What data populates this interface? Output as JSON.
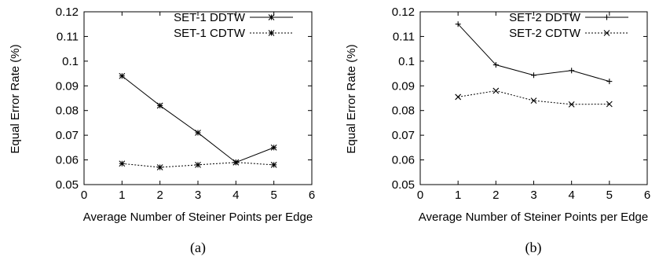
{
  "chart_data": [
    {
      "type": "line",
      "caption": "(a)",
      "xlabel": "Average Number of Steiner Points per Edge",
      "ylabel": "Equal Error Rate (%)",
      "xlim": [
        0,
        6
      ],
      "ylim": [
        0.05,
        0.12
      ],
      "xticks": [
        0,
        1,
        2,
        3,
        4,
        5,
        6
      ],
      "yticks": [
        0.05,
        0.06,
        0.07,
        0.08,
        0.09,
        0.1,
        0.11,
        0.12
      ],
      "ytick_labels": [
        "0.05",
        "0.06",
        "0.07",
        "0.08",
        "0.09",
        "0.1",
        "0.11",
        "0.12"
      ],
      "legend": "top-right",
      "grid": false,
      "series": [
        {
          "name": "SET-1 DDTW",
          "style": "solid",
          "marker": "star",
          "x": [
            1,
            2,
            3,
            4,
            5
          ],
          "y": [
            0.094,
            0.082,
            0.071,
            0.059,
            0.065
          ]
        },
        {
          "name": "SET-1 CDTW",
          "style": "dotted",
          "marker": "star",
          "x": [
            1,
            2,
            3,
            4,
            5
          ],
          "y": [
            0.0585,
            0.057,
            0.058,
            0.059,
            0.058
          ]
        }
      ]
    },
    {
      "type": "line",
      "caption": "(b)",
      "xlabel": "Average Number of Steiner Points per Edge",
      "ylabel": "Equal Error Rate (%)",
      "xlim": [
        0,
        6
      ],
      "ylim": [
        0.05,
        0.12
      ],
      "xticks": [
        0,
        1,
        2,
        3,
        4,
        5,
        6
      ],
      "yticks": [
        0.05,
        0.06,
        0.07,
        0.08,
        0.09,
        0.1,
        0.11,
        0.12
      ],
      "ytick_labels": [
        "0.05",
        "0.06",
        "0.07",
        "0.08",
        "0.09",
        "0.1",
        "0.11",
        "0.12"
      ],
      "legend": "top-right",
      "grid": false,
      "series": [
        {
          "name": "SET-2 DDTW",
          "style": "solid",
          "marker": "plus",
          "x": [
            1,
            2,
            3,
            4,
            5
          ],
          "y": [
            0.115,
            0.0985,
            0.0943,
            0.0962,
            0.0918
          ]
        },
        {
          "name": "SET-2 CDTW",
          "style": "dotted",
          "marker": "cross",
          "x": [
            1,
            2,
            3,
            4,
            5
          ],
          "y": [
            0.0855,
            0.088,
            0.084,
            0.0825,
            0.0826
          ]
        }
      ]
    }
  ]
}
